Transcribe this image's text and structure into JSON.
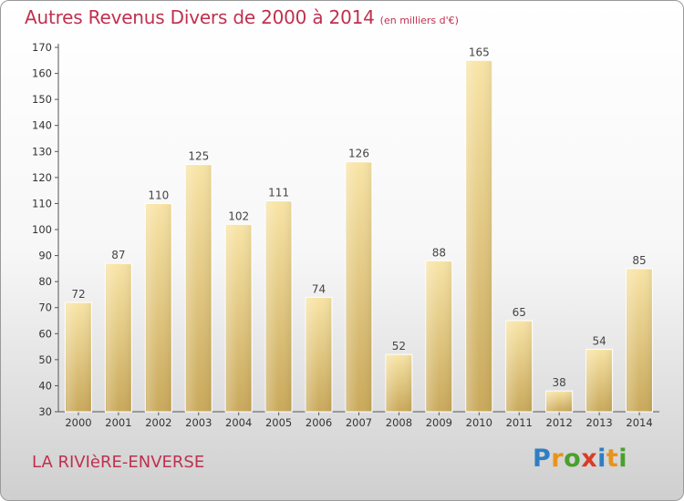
{
  "title": "Autres Revenus Divers de 2000 à 2014",
  "unit_note": "(en milliers d'€)",
  "location": "LA RIVIèRE-ENVERSE",
  "brand": {
    "letters": [
      "P",
      "r",
      "o",
      "x",
      "i",
      "t",
      "i"
    ],
    "colors": [
      "#2d7fc4",
      "#e8931c",
      "#4aa02c",
      "#d93d27",
      "#2d7fc4",
      "#e8931c",
      "#4aa02c"
    ]
  },
  "chart_data": {
    "type": "bar",
    "categories": [
      "2000",
      "2001",
      "2002",
      "2003",
      "2004",
      "2005",
      "2006",
      "2007",
      "2008",
      "2009",
      "2010",
      "2011",
      "2012",
      "2013",
      "2014"
    ],
    "values": [
      72,
      87,
      110,
      125,
      102,
      111,
      74,
      126,
      52,
      88,
      165,
      65,
      38,
      54,
      85
    ],
    "ylim": [
      30,
      170
    ],
    "yticks": [
      30,
      40,
      50,
      60,
      70,
      80,
      90,
      100,
      110,
      120,
      130,
      140,
      150,
      160,
      170
    ],
    "grid": false,
    "data_labels": true,
    "bar_color": "#e3c77f",
    "bar_gradient": [
      "#f8e4a6",
      "#c9a95b"
    ]
  }
}
